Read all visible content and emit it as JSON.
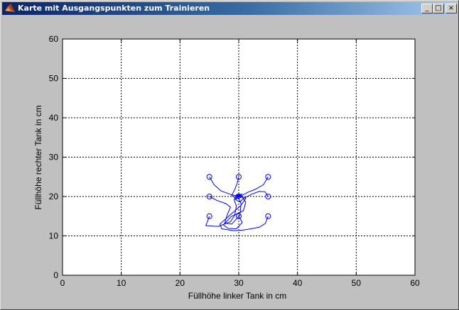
{
  "window": {
    "title": "Karte mit Ausgangspunkten zum Trainieren",
    "icon": "matlab-logo-icon",
    "buttons": {
      "minimize": "_",
      "maximize": "□",
      "close": "×"
    }
  },
  "chart_data": {
    "type": "line",
    "title": "",
    "xlabel": "Füllhöhe linker Tank in cm",
    "ylabel": "Füllhöhe rechter Tank in cm",
    "xlim": [
      0,
      60
    ],
    "ylim": [
      0,
      60
    ],
    "xticks": [
      0,
      10,
      20,
      30,
      40,
      50,
      60
    ],
    "yticks": [
      0,
      10,
      20,
      30,
      40,
      50,
      60
    ],
    "grid": true,
    "grid_style": "dotted",
    "line_color": "#0000ff",
    "start_points": [
      {
        "x": 25,
        "y": 25
      },
      {
        "x": 30,
        "y": 25
      },
      {
        "x": 35,
        "y": 25
      },
      {
        "x": 25,
        "y": 20
      },
      {
        "x": 35,
        "y": 20
      },
      {
        "x": 25,
        "y": 15
      },
      {
        "x": 30,
        "y": 15
      },
      {
        "x": 35,
        "y": 15
      }
    ],
    "target_point": {
      "x": 30,
      "y": 20
    },
    "series": [
      {
        "x": [
          25,
          25.8,
          27,
          28.5,
          29.4,
          30.2,
          30,
          29.8,
          30.3,
          30
        ],
        "y": [
          25,
          23,
          21.4,
          20.6,
          20.2,
          20.6,
          19.8,
          20.3,
          19.9,
          20.1
        ]
      },
      {
        "x": [
          30,
          29.7,
          29.3,
          28.8,
          29.6,
          30.6,
          30.2,
          29.8,
          30.1,
          30
        ],
        "y": [
          25,
          23.2,
          21.7,
          20.3,
          19.4,
          19.9,
          20.5,
          19.8,
          20.2,
          20
        ]
      },
      {
        "x": [
          35,
          34.2,
          32.8,
          31.6,
          30.7,
          29.5,
          30.3,
          30,
          29.9,
          30
        ],
        "y": [
          25,
          23,
          21.8,
          21.1,
          20.4,
          19.6,
          20.4,
          19.9,
          20.1,
          20
        ]
      },
      {
        "x": [
          25,
          26.3,
          27.8,
          28.6,
          28,
          27.6,
          28.8,
          30.2,
          30.4,
          30,
          30
        ],
        "y": [
          20,
          19,
          18.2,
          17.3,
          15.2,
          13.2,
          13,
          15.3,
          18.2,
          19.6,
          20
        ]
      },
      {
        "x": [
          35,
          34.5,
          33.5,
          32.2,
          30.8,
          30.2,
          29.4,
          30.6,
          29.9,
          30
        ],
        "y": [
          20,
          21.2,
          21.3,
          20.6,
          19.5,
          18.6,
          19.3,
          20.7,
          20.1,
          20
        ]
      },
      {
        "x": [
          25,
          24.4,
          26.5,
          28.6,
          29.3,
          29.6,
          29.2,
          29.7,
          30.3,
          30
        ],
        "y": [
          15,
          12.6,
          12.4,
          13.6,
          15.2,
          17.6,
          19.2,
          20.6,
          20.2,
          20
        ]
      },
      {
        "x": [
          30,
          30.6,
          29.6,
          28.2,
          27.4,
          28.7,
          30.8,
          31.2,
          30.2,
          29.6,
          30
        ],
        "y": [
          15,
          13.4,
          11.8,
          11.9,
          12.8,
          14.9,
          16.4,
          18.6,
          20.6,
          20.1,
          20
        ]
      },
      {
        "x": [
          35,
          34.5,
          33.5,
          32.1,
          30.8,
          29.2,
          27.1,
          26.8,
          28.6,
          30.3,
          31.2,
          30.1,
          29.8,
          30
        ],
        "y": [
          15,
          13.1,
          12.2,
          11.8,
          11.5,
          11.3,
          11.8,
          13,
          15.4,
          17.6,
          19.5,
          20.4,
          19.9,
          20
        ]
      }
    ]
  }
}
